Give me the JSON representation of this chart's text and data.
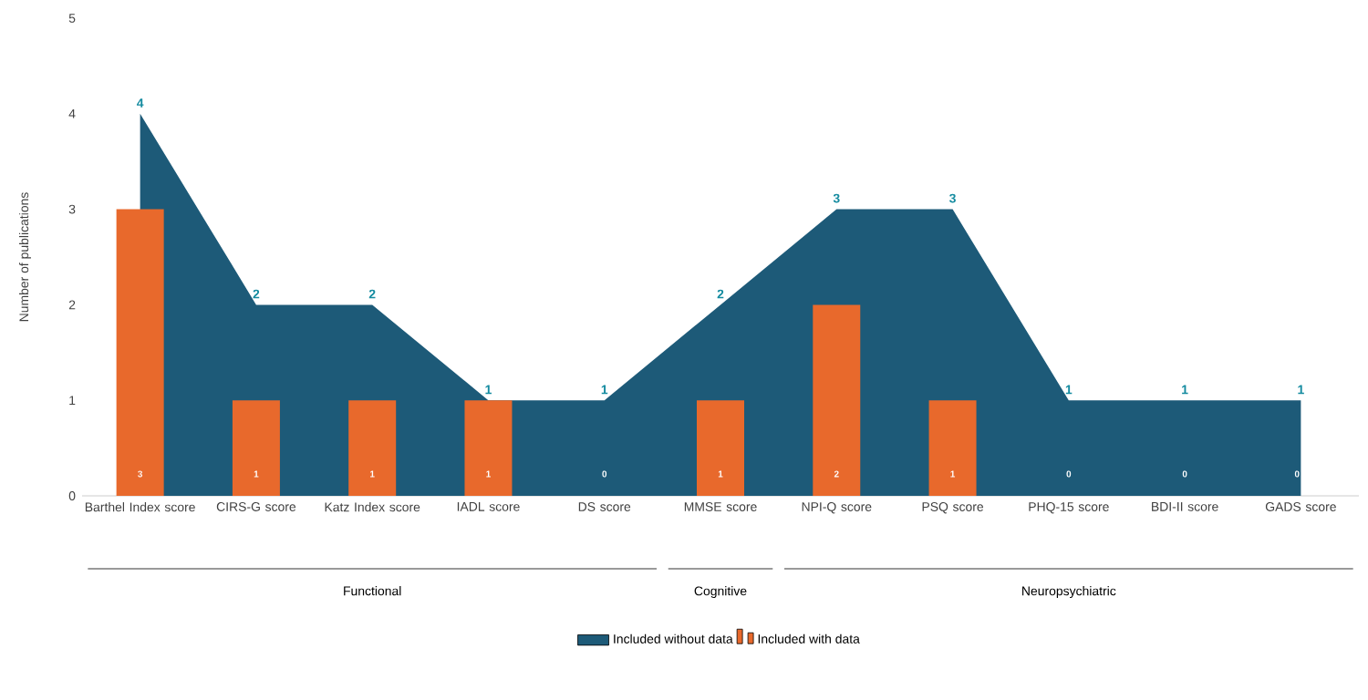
{
  "chart_data": {
    "type": "area",
    "ylabel": "Number of publications",
    "categories": [
      "Barthel Index score",
      "CIRS-G score",
      "Katz Index score",
      "IADL score",
      "DS score",
      "MMSE score",
      "NPI-Q score",
      "PSQ score",
      "PHQ-15 score",
      "BDI-II score",
      "GADS score"
    ],
    "series": [
      {
        "name": "Included without data",
        "color": "#1d5a78",
        "values": [
          4,
          2,
          2,
          1,
          1,
          2,
          3,
          3,
          1,
          1,
          1
        ]
      },
      {
        "name": "Included with data",
        "type": "bar",
        "color": "#e8692c",
        "values": [
          3,
          1,
          1,
          1,
          0,
          1,
          2,
          1,
          0,
          0,
          0
        ]
      }
    ],
    "ylim": [
      0,
      5
    ],
    "yticks": [
      0,
      1,
      2,
      3,
      4,
      5
    ],
    "data_labels": true,
    "legend": "bottom",
    "grid": false,
    "annotations": [
      "Functional",
      "Cognitive",
      "Neuropsychiatric"
    ]
  }
}
